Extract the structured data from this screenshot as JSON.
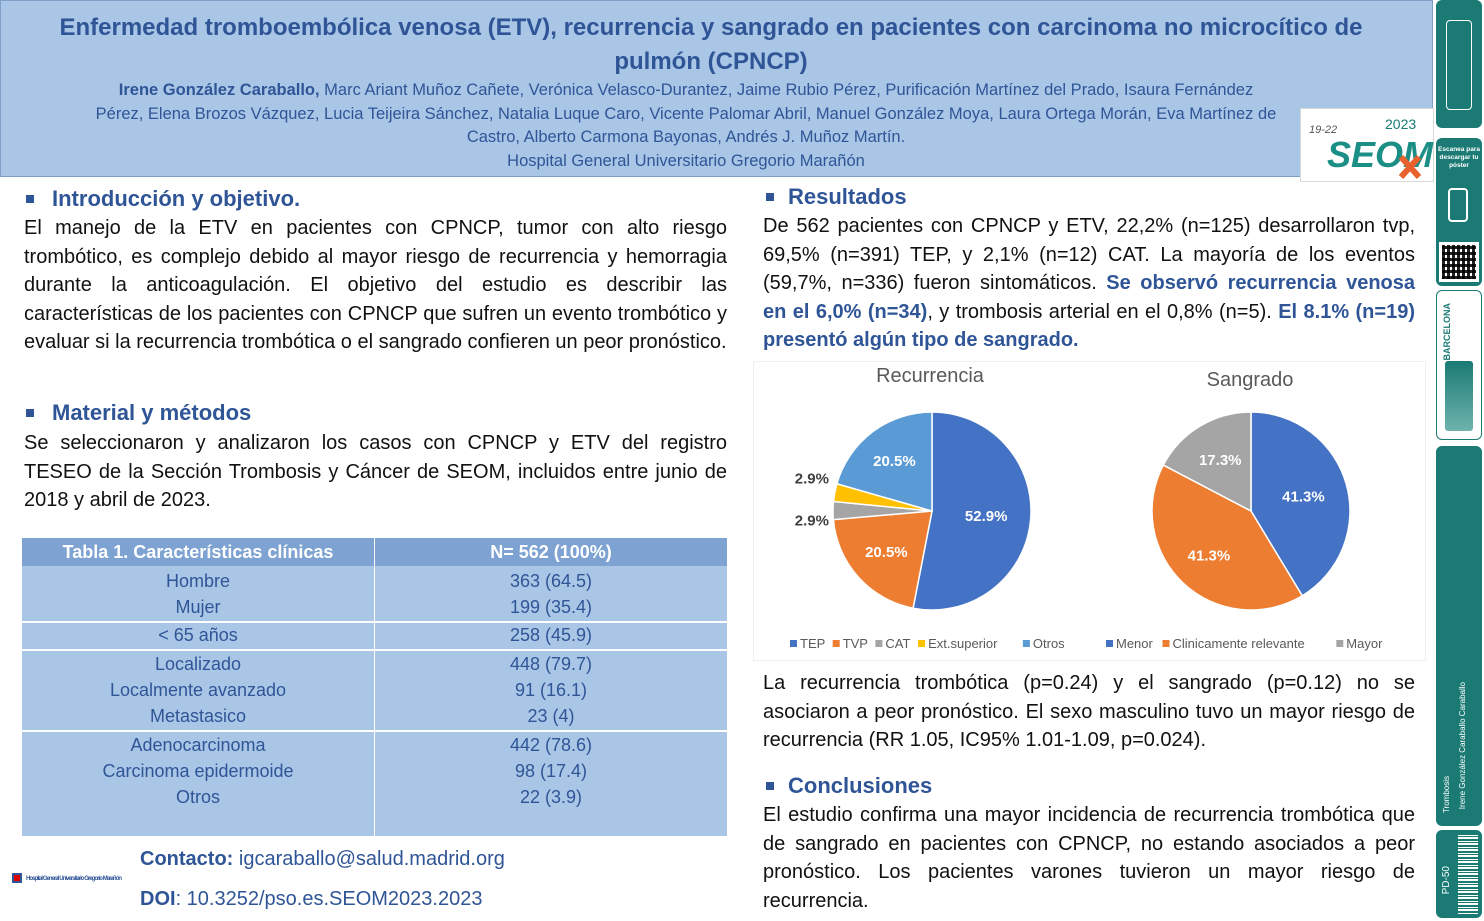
{
  "header": {
    "title": "Enfermedad tromboembólica venosa (ETV), recurrencia y sangrado en pacientes con carcinoma no microcítico de pulmón (CPNCP)",
    "first_author": "Irene González Caraballo,",
    "authors_rest_line1": " Marc Ariant Muñoz Cañete, Verónica Velasco-Durantez, Jaime Rubio Pérez, Purificación Martínez del Prado, Isaura Fernández",
    "authors_line2": "Pérez, Elena Brozos Vázquez, Lucia Teijeira Sánchez, Natalia Luque Caro, Vicente Palomar Abril, Manuel González Moya, Laura Ortega Morán, Eva Martínez de",
    "authors_line3": "Castro, Alberto Carmona Bayonas, Andrés J. Muñoz Martín.",
    "institution": "Hospital General Universitario Gregorio Marañón",
    "logo_year_range": "19-22",
    "logo_year": "2023",
    "logo_text": "SEOM"
  },
  "sidebar": {
    "scan_text": "Escanea para descargar tu póster",
    "city": "BARCELONA",
    "category": "Trombosis",
    "author": "Irene González Caraballo Caraballo",
    "code": "PD-50"
  },
  "intro": {
    "heading": "Introducción y objetivo.",
    "text": "El manejo de la ETV en pacientes con CPNCP, tumor con alto riesgo trombótico, es complejo debido al mayor riesgo de recurrencia y hemorragia durante la anticoagulación. El objetivo del estudio es describir las características de los pacientes con CPNCP que sufren un evento trombótico y evaluar si la recurrencia trombótica o el sangrado confieren un peor pronóstico."
  },
  "methods": {
    "heading": "Material y métodos",
    "text": "Se seleccionaron y analizaron los casos con CPNCP y ETV del registro TESEO de la Sección Trombosis y Cáncer de SEOM, incluidos entre junio de 2018 y abril de 2023."
  },
  "table": {
    "col1_header": "Tabla 1. Características clínicas",
    "col2_header": "N= 562 (100%)",
    "rows": [
      {
        "label": "Hombre",
        "value": "363 (64.5)"
      },
      {
        "label": "Mujer",
        "value": "199 (35.4)"
      },
      {
        "label": "< 65 años",
        "value": "258 (45.9)"
      },
      {
        "label": "Localizado",
        "value": "448 (79.7)"
      },
      {
        "label": "Localmente avanzado",
        "value": "91 (16.1)"
      },
      {
        "label": "Metastasico",
        "value": "23 (4)"
      },
      {
        "label": "Adenocarcinoma",
        "value": "442 (78.6)"
      },
      {
        "label": "Carcinoma epidermoide",
        "value": "98 (17.4)"
      },
      {
        "label": "Otros",
        "value": "22 (3.9)"
      }
    ]
  },
  "contact": {
    "contact_label": "Contacto:",
    "contact_value": " igcaraballo@salud.madrid.org",
    "doi_label": "DOI",
    "doi_value": ": 10.3252/pso.es.SEOM2023.2023",
    "hospital_logo_text": "Hospital General Universitario Gregorio Marañón"
  },
  "results": {
    "heading": "Resultados",
    "text_part1": "De 562 pacientes con CPNCP y ETV,  22,2% (n=125) desarrollaron tvp, 69,5% (n=391) TEP, y 2,1% (n=12) CAT. La mayoría de los eventos (59,7%, n=336) fueron sintomáticos. ",
    "text_hl1": "Se observó recurrencia venosa en el 6,0% (n=34)",
    "text_part2": ", y trombosis arterial en el 0,8% (n=5). ",
    "text_hl2": "El 8.1% (n=19) presentó algún tipo de sangrado.",
    "text_after": "La recurrencia trombótica (p=0.24) y el sangrado (p=0.12) no se asociaron a peor pronóstico. El sexo masculino tuvo un mayor riesgo de recurrencia (RR 1.05, IC95% 1.01-1.09, p=0.024)."
  },
  "conclusions": {
    "heading": "Conclusiones",
    "text": "El estudio confirma una mayor incidencia de recurrencia trombótica que de sangrado en pacientes con CPNCP, no estando asociados a peor pronóstico. Los pacientes varones tuvieron un mayor riesgo de recurrencia."
  },
  "chart_data": [
    {
      "type": "pie",
      "title": "Recurrencia",
      "labels": [
        "TEP",
        "TVP",
        "CAT",
        "Ext.superior",
        "Otros"
      ],
      "values": [
        52.9,
        20.5,
        2.9,
        2.9,
        20.5
      ],
      "value_labels": [
        "52.9%",
        "20.5%",
        "2.9%",
        "2.9%",
        "20.5%"
      ],
      "colors": [
        "#4472c4",
        "#ed7d31",
        "#a5a5a5",
        "#ffc000",
        "#5b9bd5"
      ],
      "legend": "bottom"
    },
    {
      "type": "pie",
      "title": "Sangrado",
      "labels": [
        "Menor",
        "Clinicamente relevante",
        "Mayor"
      ],
      "values": [
        41.3,
        41.3,
        17.3
      ],
      "value_labels": [
        "41.3%",
        "41.3%",
        "17.3%"
      ],
      "colors": [
        "#4472c4",
        "#ed7d31",
        "#a5a5a5"
      ],
      "legend": "bottom"
    }
  ]
}
